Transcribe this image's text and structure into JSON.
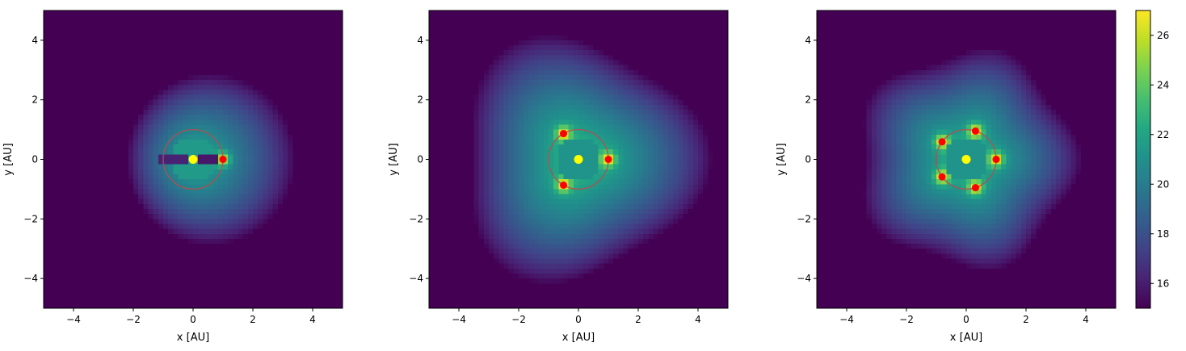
{
  "chart_data": [
    {
      "type": "heatmap",
      "panel": "left",
      "xlabel": "x [AU]",
      "ylabel": "y [AU]",
      "xlim": [
        -5,
        5
      ],
      "ylim": [
        -5,
        5
      ],
      "xticks": [
        -4,
        -2,
        0,
        2,
        4
      ],
      "yticks": [
        -4,
        -2,
        0,
        2,
        4
      ],
      "xticklabels": [
        "−4",
        "−2",
        "0",
        "2",
        "4"
      ],
      "yticklabels": [
        "−4",
        "−2",
        "0",
        "2",
        "4"
      ],
      "colorscale": "viridis",
      "value_range": [
        15,
        27
      ],
      "orbit": {
        "center": [
          0,
          0
        ],
        "radius": 1.0,
        "color": "#b05050"
      },
      "central_star": {
        "x": 0,
        "y": 0,
        "color": "#ffff00"
      },
      "planets": [
        {
          "x": 1.0,
          "y": 0.0
        }
      ],
      "planet_color": "#ff0000"
    },
    {
      "type": "heatmap",
      "panel": "middle",
      "xlabel": "x [AU]",
      "ylabel": "y [AU]",
      "xlim": [
        -5,
        5
      ],
      "ylim": [
        -5,
        5
      ],
      "xticks": [
        -4,
        -2,
        0,
        2,
        4
      ],
      "yticks": [
        -4,
        -2,
        0,
        2,
        4
      ],
      "xticklabels": [
        "−4",
        "−2",
        "0",
        "2",
        "4"
      ],
      "yticklabels": [
        "−4",
        "−2",
        "0",
        "2",
        "4"
      ],
      "colorscale": "viridis",
      "value_range": [
        15,
        27
      ],
      "orbit": {
        "center": [
          0,
          0
        ],
        "radius": 1.0,
        "color": "#b05050"
      },
      "central_star": {
        "x": 0,
        "y": 0,
        "color": "#ffff00"
      },
      "planets": [
        {
          "x": 1.0,
          "y": 0.0
        },
        {
          "x": -0.5,
          "y": 0.866
        },
        {
          "x": -0.5,
          "y": -0.866
        }
      ],
      "planet_color": "#ff0000"
    },
    {
      "type": "heatmap",
      "panel": "right",
      "xlabel": "x [AU]",
      "ylabel": "y [AU]",
      "xlim": [
        -5,
        5
      ],
      "ylim": [
        -5,
        5
      ],
      "xticks": [
        -4,
        -2,
        0,
        2,
        4
      ],
      "yticks": [
        -4,
        -2,
        0,
        2,
        4
      ],
      "xticklabels": [
        "−4",
        "−2",
        "0",
        "2",
        "4"
      ],
      "yticklabels": [
        "−4",
        "−2",
        "0",
        "2",
        "4"
      ],
      "colorscale": "viridis",
      "value_range": [
        15,
        27
      ],
      "orbit": {
        "center": [
          0,
          0
        ],
        "radius": 1.0,
        "color": "#b05050"
      },
      "central_star": {
        "x": 0,
        "y": 0,
        "color": "#ffff00"
      },
      "planets": [
        {
          "x": 1.0,
          "y": 0.0
        },
        {
          "x": 0.309,
          "y": 0.951
        },
        {
          "x": -0.809,
          "y": 0.588
        },
        {
          "x": -0.809,
          "y": -0.588
        },
        {
          "x": 0.309,
          "y": -0.951
        }
      ],
      "planet_color": "#ff0000"
    }
  ],
  "colorbar": {
    "range": [
      15,
      27
    ],
    "ticks": [
      16,
      18,
      20,
      22,
      24,
      26
    ],
    "ticklabels": [
      "16",
      "18",
      "20",
      "22",
      "24",
      "26"
    ],
    "colorscale": "viridis"
  }
}
